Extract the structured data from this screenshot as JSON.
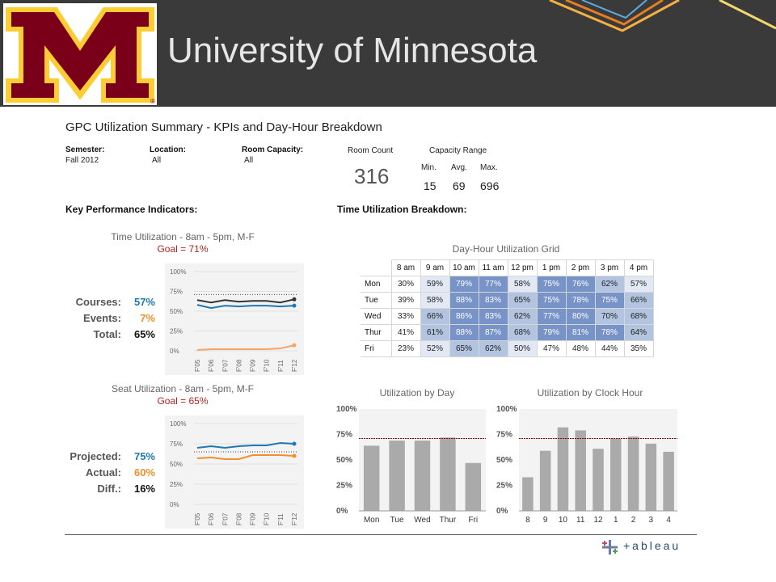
{
  "header": {
    "university": "University of Minnesota",
    "logo_letter": "M",
    "logo_mark": "®"
  },
  "dashboard": {
    "title": "GPC Utilization Summary - KPIs and Day-Hour Breakdown",
    "filters": [
      {
        "label": "Semester:",
        "value": "Fall 2012"
      },
      {
        "label": "Location:",
        "value": "All"
      },
      {
        "label": "Room Capacity:",
        "value": "All"
      }
    ],
    "room_count": {
      "label": "Room Count",
      "value": "316"
    },
    "capacity_range": {
      "label": "Capacity Range",
      "min_label": "Min.",
      "avg_label": "Avg.",
      "max_label": "Max.",
      "min": "15",
      "avg": "69",
      "max": "696"
    },
    "kpi_section": "Key Performance Indicators:",
    "time_section": "Time Utilization Breakdown:",
    "footer_logo": "+ableau"
  },
  "time_kpi": {
    "title": "Time Utilization - 8am - 5pm, M-F",
    "goal": "Goal = 71%",
    "rows": [
      {
        "label": "Courses:",
        "value": "57%",
        "color": "#1f77b4"
      },
      {
        "label": "Events:",
        "value": "7%",
        "color": "#f28e2b"
      },
      {
        "label": "Total:",
        "value": "65%",
        "color": "#111111"
      }
    ]
  },
  "seat_kpi": {
    "title": "Seat Utilization - 8am - 5pm, M-F",
    "goal": "Goal = 65%",
    "rows": [
      {
        "label": "Projected:",
        "value": "75%",
        "color": "#1f77b4"
      },
      {
        "label": "Actual:",
        "value": "60%",
        "color": "#f28e2b"
      },
      {
        "label": "Diff.:",
        "value": "16%",
        "color": "#111111"
      }
    ]
  },
  "grid": {
    "title": "Day-Hour Utilization Grid",
    "hours": [
      "8 am",
      "9 am",
      "10 am",
      "11 am",
      "12 pm",
      "1 pm",
      "2 pm",
      "3 pm",
      "4 pm"
    ],
    "rows": [
      {
        "day": "Mon",
        "values": [
          "30%",
          "59%",
          "79%",
          "77%",
          "58%",
          "75%",
          "76%",
          "62%",
          "57%"
        ]
      },
      {
        "day": "Tue",
        "values": [
          "39%",
          "58%",
          "88%",
          "83%",
          "65%",
          "75%",
          "78%",
          "75%",
          "66%"
        ]
      },
      {
        "day": "Wed",
        "values": [
          "33%",
          "66%",
          "86%",
          "83%",
          "62%",
          "77%",
          "80%",
          "70%",
          "68%"
        ]
      },
      {
        "day": "Thur",
        "values": [
          "41%",
          "61%",
          "88%",
          "87%",
          "68%",
          "79%",
          "81%",
          "78%",
          "64%"
        ]
      },
      {
        "day": "Fri",
        "values": [
          "23%",
          "52%",
          "65%",
          "62%",
          "50%",
          "47%",
          "48%",
          "44%",
          "35%"
        ]
      }
    ]
  },
  "chart_data": [
    {
      "type": "line",
      "title": "Time Utilization - 8am - 5pm, M-F",
      "x": [
        "F'05",
        "F'06",
        "F'07",
        "F'08",
        "F'09",
        "F'10",
        "F'11",
        "F'12"
      ],
      "ylim": [
        0,
        100
      ],
      "yticks": [
        "0%",
        "25%",
        "50%",
        "75%",
        "100%"
      ],
      "goal": 71,
      "series": [
        {
          "values": [
            64,
            61,
            64,
            62,
            63,
            63,
            61,
            65
          ],
          "color": "#333333"
        },
        {
          "values": [
            58,
            54,
            57,
            56,
            57,
            57,
            56,
            57
          ],
          "color": "#1f77b4"
        },
        {
          "values": [
            1,
            2,
            2,
            2,
            2,
            2,
            3,
            7
          ],
          "color": "#f5a463"
        }
      ]
    },
    {
      "type": "line",
      "title": "Seat Utilization - 8am - 5pm, M-F",
      "x": [
        "F'05",
        "F'06",
        "F'07",
        "F'08",
        "F'09",
        "F'10",
        "F'11",
        "F'12"
      ],
      "ylim": [
        0,
        100
      ],
      "yticks": [
        "0%",
        "25%",
        "50%",
        "75%",
        "100%"
      ],
      "goal": 65,
      "series": [
        {
          "values": [
            70,
            72,
            70,
            72,
            73,
            73,
            76,
            75
          ],
          "color": "#1f77b4"
        },
        {
          "values": [
            57,
            58,
            56,
            56,
            61,
            61,
            61,
            60
          ],
          "color": "#f28e2b"
        }
      ]
    },
    {
      "type": "bar",
      "title": "Utilization by Day",
      "categories": [
        "Mon",
        "Tue",
        "Wed",
        "Thur",
        "Fri"
      ],
      "values": [
        64,
        69,
        69,
        72,
        47
      ],
      "ylim": [
        0,
        100
      ],
      "yticks": [
        "0%",
        "25%",
        "50%",
        "75%",
        "100%"
      ],
      "goal": 71
    },
    {
      "type": "bar",
      "title": "Utilization by Clock Hour",
      "categories": [
        "8",
        "9",
        "10",
        "11",
        "12",
        "1",
        "2",
        "3",
        "4"
      ],
      "values": [
        33,
        59,
        82,
        79,
        61,
        71,
        73,
        66,
        58
      ],
      "ylim": [
        0,
        100
      ],
      "yticks": [
        "0%",
        "25%",
        "50%",
        "75%",
        "100%"
      ],
      "goal": 71
    }
  ]
}
